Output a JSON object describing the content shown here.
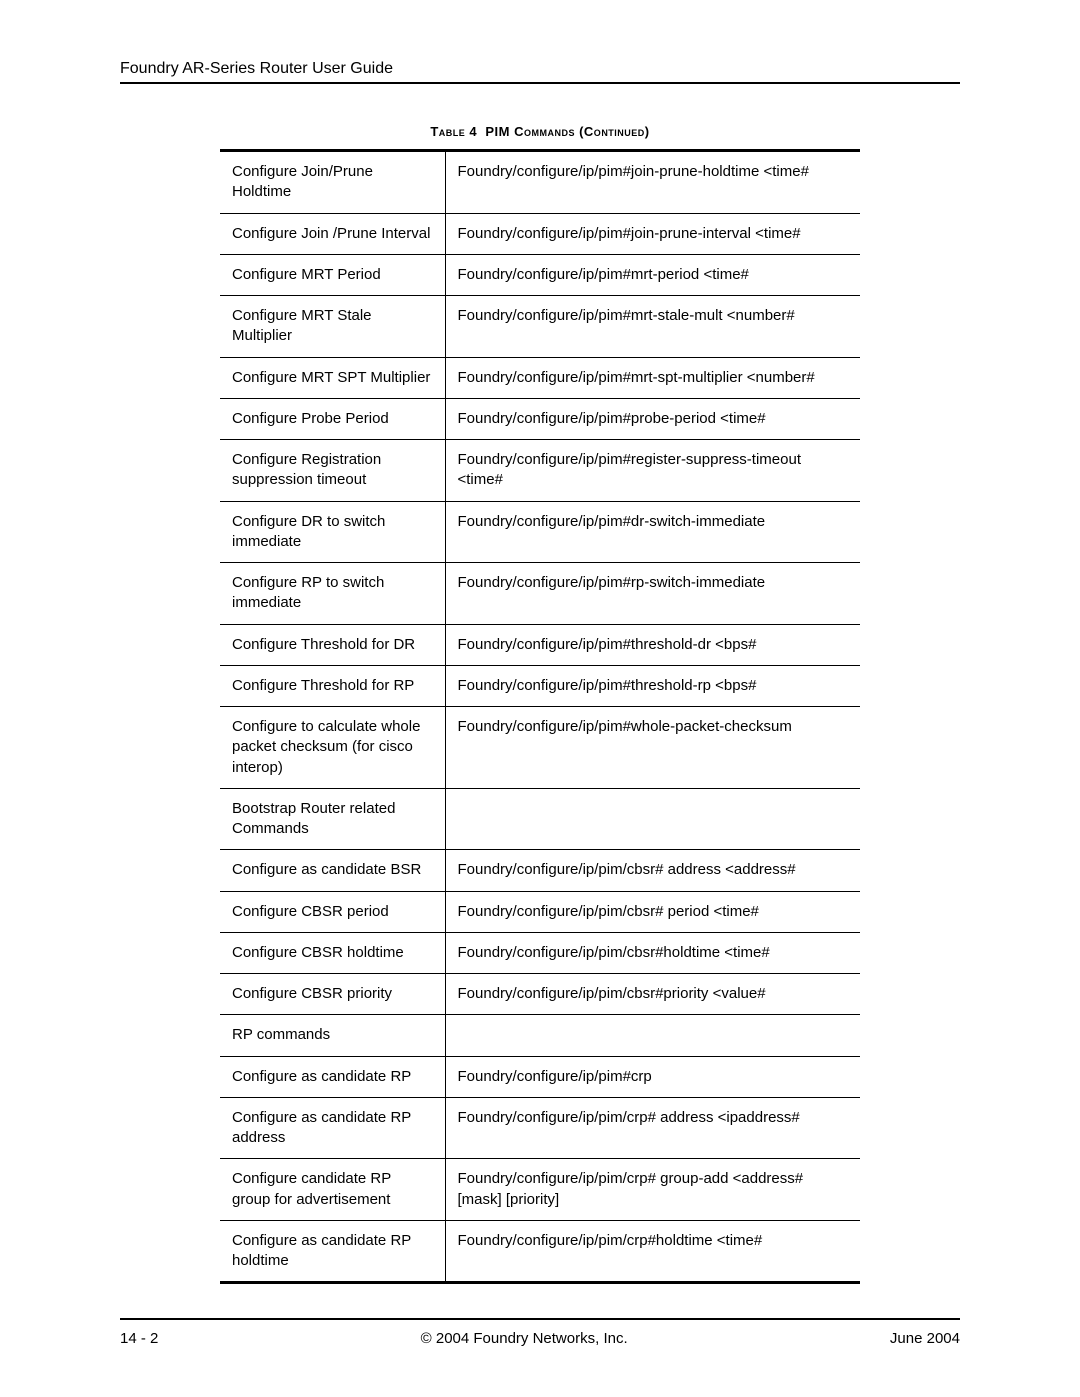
{
  "header": {
    "title": "Foundry AR-Series Router User Guide"
  },
  "tableCaption": {
    "label": "Table 4",
    "title": "PIM Commands (Continued)"
  },
  "tableStyle": {
    "borderColor": "#000000",
    "topBottomBorderWidth": 3,
    "innerBorderWidth": 1,
    "fontSize": 15,
    "col1Width": 225,
    "totalWidth": 640,
    "background": "#ffffff"
  },
  "rows": [
    {
      "c1": "Configure Join/Prune Holdtime",
      "c2": "Foundry/configure/ip/pim#join-prune-holdtime <time#"
    },
    {
      "c1": "Configure Join /Prune Interval",
      "c2": "Foundry/configure/ip/pim#join-prune-interval <time#"
    },
    {
      "c1": "Configure MRT Period",
      "c2": "Foundry/configure/ip/pim#mrt-period <time#"
    },
    {
      "c1": "Configure MRT Stale Multiplier",
      "c2": "Foundry/configure/ip/pim#mrt-stale-mult <number#"
    },
    {
      "c1": "Configure MRT SPT Multiplier",
      "c2": "Foundry/configure/ip/pim#mrt-spt-multiplier <number#"
    },
    {
      "c1": "Configure Probe Period",
      "c2": "Foundry/configure/ip/pim#probe-period <time#"
    },
    {
      "c1": "Configure Registration suppression timeout",
      "c2": "Foundry/configure/ip/pim#register-suppress-timeout <time#"
    },
    {
      "c1": "Configure DR to switch immediate",
      "c2": "Foundry/configure/ip/pim#dr-switch-immediate"
    },
    {
      "c1": "Configure RP to switch immediate",
      "c2": "Foundry/configure/ip/pim#rp-switch-immediate"
    },
    {
      "c1": "Configure Threshold for DR",
      "c2": "Foundry/configure/ip/pim#threshold-dr <bps#"
    },
    {
      "c1": "Configure Threshold for RP",
      "c2": "Foundry/configure/ip/pim#threshold-rp <bps#"
    },
    {
      "c1": "Configure to calculate whole packet checksum (for cisco interop)",
      "c2": "Foundry/configure/ip/pim#whole-packet-checksum"
    },
    {
      "c1": "Bootstrap Router related Commands",
      "c2": ""
    },
    {
      "c1": "Configure as candidate BSR",
      "c2": "Foundry/configure/ip/pim/cbsr# address <address#"
    },
    {
      "c1": "Configure CBSR period",
      "c2": "Foundry/configure/ip/pim/cbsr# period <time#"
    },
    {
      "c1": "Configure CBSR holdtime",
      "c2": "Foundry/configure/ip/pim/cbsr#holdtime <time#"
    },
    {
      "c1": "Configure CBSR priority",
      "c2": "Foundry/configure/ip/pim/cbsr#priority <value#"
    },
    {
      "c1": "RP commands",
      "c2": ""
    },
    {
      "c1": "Configure as candidate RP",
      "c2": "Foundry/configure/ip/pim#crp"
    },
    {
      "c1": "Configure as candidate RP address",
      "c2": "Foundry/configure/ip/pim/crp# address <ipaddress#"
    },
    {
      "c1": "Configure candidate RP group for advertisement",
      "c2": "Foundry/configure/ip/pim/crp# group-add <address# [mask] [priority]"
    },
    {
      "c1": "Configure as candidate RP holdtime",
      "c2": "Foundry/configure/ip/pim/crp#holdtime <time#"
    }
  ],
  "footer": {
    "pageNumber": "14 - 2",
    "copyright": "© 2004 Foundry Networks, Inc.",
    "date": "June 2004"
  }
}
